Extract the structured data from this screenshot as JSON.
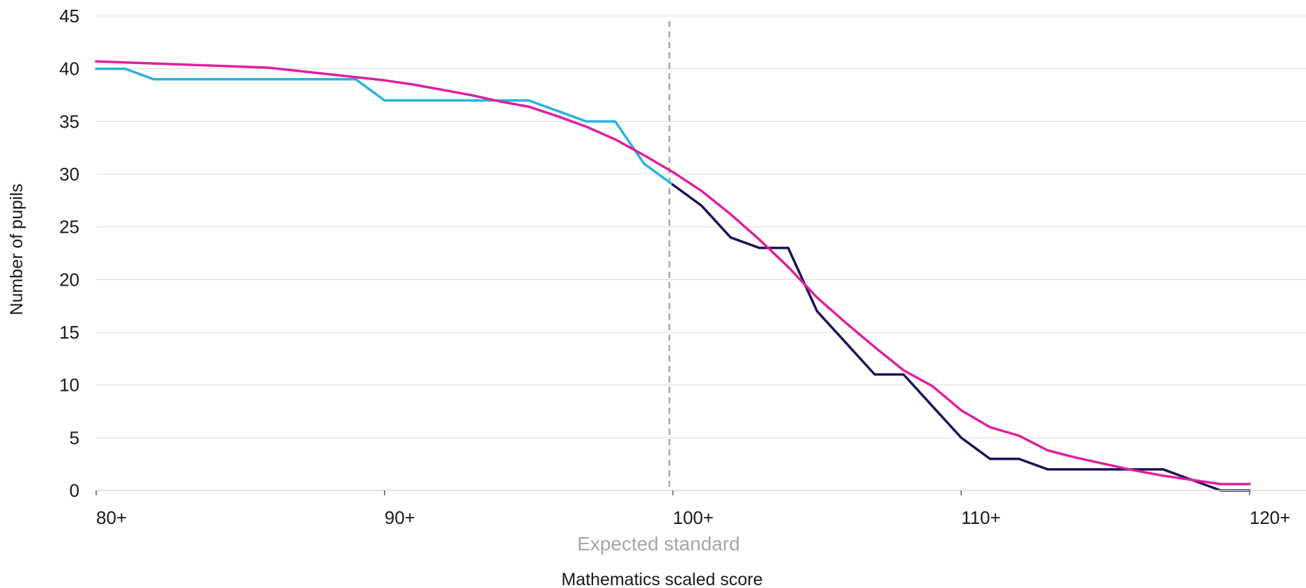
{
  "chart_data": {
    "type": "line",
    "xlabel": "Mathematics scaled score",
    "ylabel": "Number of pupils",
    "xlim": [
      80,
      120
    ],
    "ylim": [
      0,
      45
    ],
    "x_ticks": [
      {
        "value": 80,
        "label": "80+"
      },
      {
        "value": 90,
        "label": "90+"
      },
      {
        "value": 100,
        "label": "100+"
      },
      {
        "value": 110,
        "label": "110+"
      },
      {
        "value": 120,
        "label": "120+"
      }
    ],
    "y_ticks": [
      0,
      5,
      10,
      15,
      20,
      25,
      30,
      35,
      40,
      45
    ],
    "grid": "horizontal",
    "reference_line": {
      "x": 100,
      "label": "Expected standard",
      "color": "#a6a6a6",
      "style": "dashed"
    },
    "series": [
      {
        "color": "#27b4dc",
        "x": [
          80,
          81,
          82,
          83,
          84,
          85,
          86,
          87,
          88,
          89,
          90,
          91,
          92,
          93,
          94,
          95,
          96,
          97,
          98,
          99,
          100
        ],
        "values": [
          40,
          40,
          39,
          39,
          39,
          39,
          39,
          39,
          39,
          39,
          37,
          37,
          37,
          37,
          37,
          37,
          36,
          35,
          35,
          31,
          29
        ]
      },
      {
        "color": "#1c1259",
        "x": [
          100,
          101,
          102,
          103,
          104,
          105,
          106,
          107,
          108,
          109,
          110,
          111,
          112,
          113,
          114,
          115,
          116,
          117,
          118,
          119,
          120
        ],
        "values": [
          29,
          27,
          24,
          23,
          23,
          17,
          14,
          11,
          11,
          8,
          5,
          3,
          3,
          2,
          2,
          2,
          2,
          2,
          1,
          0,
          0
        ]
      },
      {
        "color": "#e01f9e",
        "x": [
          80,
          81,
          82,
          83,
          84,
          85,
          86,
          87,
          88,
          89,
          90,
          91,
          92,
          93,
          94,
          95,
          96,
          97,
          98,
          99,
          100,
          101,
          102,
          103,
          104,
          105,
          106,
          107,
          108,
          109,
          110,
          111,
          112,
          113,
          114,
          115,
          116,
          117,
          118,
          119,
          120
        ],
        "values": [
          40.7,
          40.6,
          40.5,
          40.4,
          40.3,
          40.2,
          40.1,
          39.8,
          39.5,
          39.2,
          38.9,
          38.5,
          38.0,
          37.5,
          36.9,
          36.4,
          35.5,
          34.5,
          33.3,
          31.8,
          30.2,
          28.4,
          26.2,
          23.8,
          21.2,
          18.3,
          15.9,
          13.6,
          11.4,
          9.9,
          7.6,
          6.0,
          5.2,
          3.8,
          3.1,
          2.5,
          1.9,
          1.4,
          1.0,
          0.6,
          0.6
        ]
      }
    ]
  }
}
